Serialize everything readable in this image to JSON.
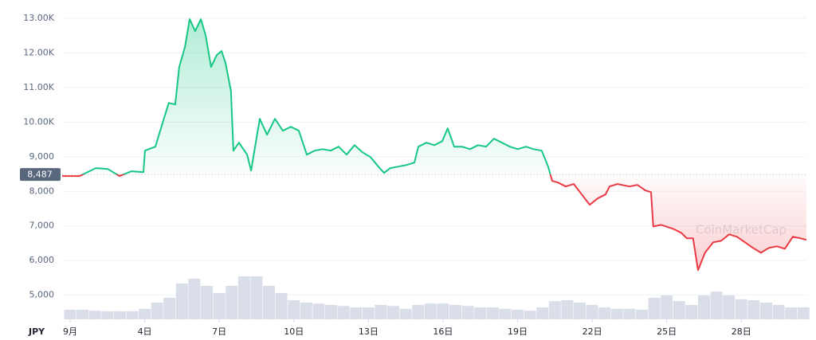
{
  "chart_data": {
    "type": "line",
    "currency": "JPY",
    "watermark": "CoinMarketCap",
    "reference": {
      "value": 8487,
      "label": "8,487"
    },
    "up_color": "#16c784",
    "down_color": "#ea3943",
    "grid": true,
    "xlim": [
      0.68,
      30.62
    ],
    "xticks": [
      {
        "value": 1,
        "label": "9月"
      },
      {
        "value": 4,
        "label": "4日"
      },
      {
        "value": 7,
        "label": "7日"
      },
      {
        "value": 10,
        "label": "10日"
      },
      {
        "value": 13,
        "label": "13日"
      },
      {
        "value": 16,
        "label": "16日"
      },
      {
        "value": 19,
        "label": "19日"
      },
      {
        "value": 22,
        "label": "22日"
      },
      {
        "value": 25,
        "label": "25日"
      },
      {
        "value": 28,
        "label": "28日"
      }
    ],
    "ylim": [
      4300,
      13300
    ],
    "yticks": [
      {
        "value": 5000,
        "label": "5,000"
      },
      {
        "value": 6000,
        "label": "6,000"
      },
      {
        "value": 7000,
        "label": "7,000"
      },
      {
        "value": 8000,
        "label": "8,000"
      },
      {
        "value": 9000,
        "label": "9,000"
      },
      {
        "value": 10000,
        "label": "10.00K"
      },
      {
        "value": 11000,
        "label": "11.00K"
      },
      {
        "value": 12000,
        "label": "12.00K"
      },
      {
        "value": 13000,
        "label": "13.00K"
      }
    ],
    "x": [
      0.68,
      1.38,
      2.03,
      2.51,
      2.99,
      3.47,
      3.95,
      4.01,
      4.43,
      4.75,
      4.97,
      5.23,
      5.39,
      5.62,
      5.81,
      6.03,
      6.26,
      6.45,
      6.67,
      6.9,
      7.09,
      7.25,
      7.47,
      7.57,
      7.79,
      8.12,
      8.28,
      8.44,
      8.63,
      8.92,
      9.24,
      9.56,
      9.88,
      10.2,
      10.52,
      10.84,
      11.16,
      11.48,
      11.8,
      12.12,
      12.44,
      12.76,
      13.08,
      13.4,
      13.63,
      13.88,
      14.21,
      14.53,
      14.85,
      15.01,
      15.33,
      15.65,
      15.97,
      16.19,
      16.45,
      16.77,
      17.09,
      17.41,
      17.73,
      18.05,
      18.37,
      18.69,
      19.01,
      19.33,
      19.65,
      19.97,
      20.23,
      20.39,
      20.62,
      20.94,
      21.26,
      21.58,
      21.9,
      22.22,
      22.54,
      22.7,
      23.02,
      23.5,
      23.82,
      24.14,
      24.37,
      24.46,
      24.78,
      25.26,
      25.58,
      25.81,
      26.06,
      26.26,
      26.54,
      26.87,
      27.19,
      27.51,
      27.83,
      28.15,
      28.47,
      28.79,
      29.11,
      29.43,
      29.75,
      30.07,
      30.39,
      30.62
    ],
    "values": [
      8440,
      8440,
      8670,
      8645,
      8440,
      8580,
      8555,
      9175,
      9290,
      10050,
      10555,
      10510,
      11595,
      12170,
      12975,
      12630,
      12975,
      12515,
      11595,
      11940,
      12055,
      11710,
      10905,
      9175,
      9405,
      9060,
      8600,
      9290,
      10095,
      9635,
      10095,
      9750,
      9865,
      9750,
      9060,
      9175,
      9220,
      9175,
      9290,
      9060,
      9335,
      9130,
      8990,
      8715,
      8530,
      8670,
      8715,
      8760,
      8830,
      9290,
      9405,
      9335,
      9450,
      9820,
      9290,
      9290,
      9220,
      9335,
      9290,
      9520,
      9405,
      9290,
      9220,
      9290,
      9220,
      9175,
      8715,
      8300,
      8255,
      8140,
      8210,
      7910,
      7610,
      7795,
      7910,
      8140,
      8210,
      8140,
      8185,
      8025,
      7975,
      6985,
      7030,
      6915,
      6800,
      6640,
      6640,
      5720,
      6225,
      6525,
      6570,
      6755,
      6685,
      6525,
      6365,
      6225,
      6365,
      6410,
      6340,
      6685,
      6640,
      6595
    ],
    "volume": {
      "axis": "y2",
      "color": "#cfd6e4",
      "y2lim": [
        0,
        100
      ],
      "x": [
        1,
        1.5,
        2,
        2.5,
        3,
        3.5,
        4,
        4.5,
        5,
        5.5,
        6,
        6.5,
        7,
        7.5,
        8,
        8.5,
        9,
        9.5,
        10,
        10.5,
        11,
        11.5,
        12,
        12.5,
        13,
        13.5,
        14,
        14.5,
        15,
        15.5,
        16,
        16.5,
        17,
        17.5,
        18,
        18.5,
        19,
        19.5,
        20,
        20.5,
        21,
        21.5,
        22,
        22.5,
        23,
        23.5,
        24,
        24.5,
        25,
        25.5,
        26,
        26.5,
        27,
        27.5,
        28,
        28.5,
        29,
        29.5,
        30,
        30.5
      ],
      "values": [
        20,
        20,
        18,
        17,
        17,
        17,
        22,
        35,
        45,
        75,
        85,
        70,
        55,
        70,
        90,
        90,
        70,
        55,
        40,
        35,
        33,
        30,
        28,
        25,
        25,
        30,
        28,
        22,
        30,
        33,
        33,
        30,
        28,
        25,
        25,
        22,
        20,
        18,
        25,
        38,
        40,
        35,
        30,
        25,
        22,
        22,
        20,
        45,
        50,
        38,
        30,
        50,
        58,
        50,
        42,
        40,
        35,
        30,
        25,
        25
      ]
    }
  }
}
